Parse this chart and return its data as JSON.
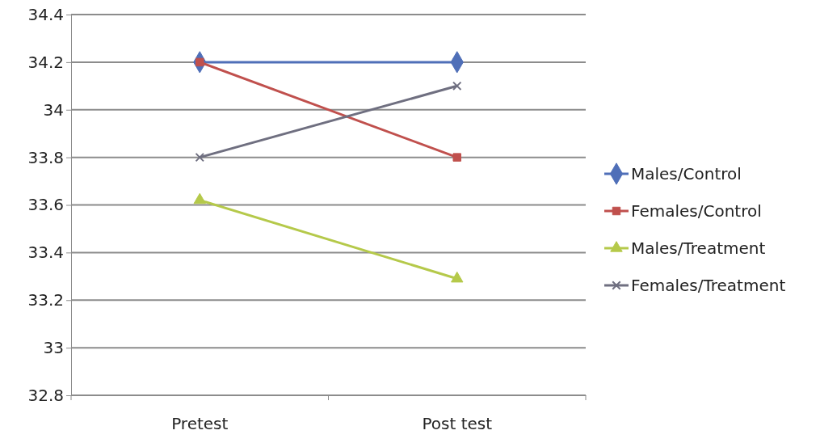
{
  "chart_data": {
    "type": "line",
    "categories": [
      "Pretest",
      "Post test"
    ],
    "series": [
      {
        "name": "Males/Control",
        "color": "#4f6fb8",
        "marker": "diamond",
        "values": [
          34.2,
          34.2
        ]
      },
      {
        "name": "Females/Control",
        "color": "#c0504d",
        "marker": "square",
        "values": [
          34.2,
          33.8
        ]
      },
      {
        "name": "Males/Treatment",
        "color": "#b5c94a",
        "marker": "triangle",
        "values": [
          33.62,
          33.29
        ]
      },
      {
        "name": "Females/Treatment",
        "color": "#6f6f80",
        "marker": "cross",
        "values": [
          33.8,
          34.1
        ]
      }
    ],
    "ylim": [
      32.8,
      34.4
    ],
    "yticks": [
      32.8,
      33,
      33.2,
      33.4,
      33.6,
      33.8,
      34,
      34.2,
      34.4
    ],
    "grid": "y",
    "legend": "right"
  }
}
